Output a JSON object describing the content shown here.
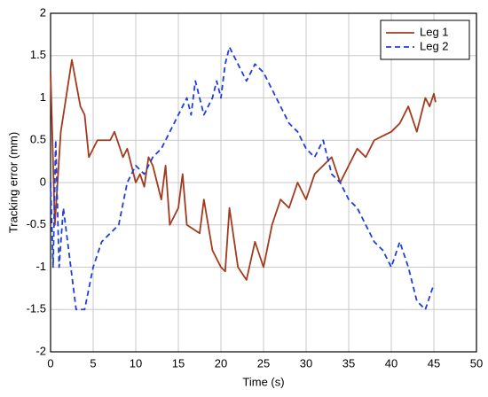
{
  "chart_data": {
    "type": "line",
    "xlabel": "Time (s)",
    "ylabel": "Tracking error (mm)",
    "xlim": [
      0,
      50
    ],
    "xticks": [
      0,
      5,
      10,
      15,
      20,
      25,
      30,
      35,
      40,
      45,
      50
    ],
    "ylim": [
      -2,
      2
    ],
    "yticks": [
      -2,
      -1.5,
      -1,
      -0.5,
      0,
      0.5,
      1,
      1.5,
      2
    ],
    "grid": true,
    "legend": "upper right",
    "series": [
      {
        "name": "Leg 1",
        "color": "#a23b1e",
        "dash": false,
        "x": [
          0,
          0.5,
          1.2,
          2.5,
          3.5,
          4,
          4.5,
          5.5,
          7,
          7.5,
          8.5,
          9,
          10,
          10.5,
          11,
          11.5,
          12,
          13,
          13.5,
          14,
          15,
          15.5,
          16,
          17.5,
          18,
          19,
          20,
          20.5,
          21,
          22,
          23,
          24,
          25,
          26,
          27,
          28,
          29,
          30,
          31,
          32,
          33,
          34,
          35,
          36,
          37,
          38,
          39,
          40,
          41,
          42,
          43,
          44,
          44.5,
          45,
          45.2
        ],
        "values": [
          1.3,
          -0.5,
          0.6,
          1.45,
          0.9,
          0.8,
          0.3,
          0.5,
          0.5,
          0.6,
          0.3,
          0.4,
          0,
          0.1,
          -0.05,
          0.3,
          0.2,
          -0.2,
          0.2,
          -0.5,
          -0.3,
          0.1,
          -0.5,
          -0.6,
          -0.2,
          -0.8,
          -1.0,
          -1.05,
          -0.3,
          -1.0,
          -1.15,
          -0.7,
          -1.0,
          -0.5,
          -0.2,
          -0.3,
          0,
          -0.2,
          0.1,
          0.2,
          0.3,
          0,
          0.2,
          0.4,
          0.3,
          0.5,
          0.55,
          0.6,
          0.7,
          0.9,
          0.6,
          1.0,
          0.9,
          1.05,
          0.95
        ]
      },
      {
        "name": "Leg 2",
        "color": "#1f3fd6",
        "dash": true,
        "x": [
          0,
          0.3,
          0.6,
          1,
          1.5,
          3,
          4,
          5,
          6,
          7,
          8,
          9,
          10,
          11,
          12,
          13,
          14,
          15,
          16,
          16.5,
          17,
          18,
          19,
          19.5,
          20,
          20.5,
          21,
          22,
          23,
          24,
          25,
          26,
          27,
          28,
          29,
          30,
          31,
          32,
          33,
          34,
          35,
          36,
          37,
          38,
          39,
          40,
          41,
          42,
          43,
          44,
          45
        ],
        "values": [
          0,
          -1,
          0.5,
          -1,
          -0.3,
          -1.5,
          -1.5,
          -1.0,
          -0.7,
          -0.6,
          -0.5,
          0,
          0.2,
          0.1,
          0.3,
          0.4,
          0.6,
          0.8,
          1.0,
          0.8,
          1.2,
          0.8,
          1.0,
          1.2,
          1.0,
          1.4,
          1.6,
          1.4,
          1.2,
          1.4,
          1.3,
          1.1,
          0.9,
          0.7,
          0.6,
          0.4,
          0.3,
          0.5,
          0.1,
          0,
          -0.2,
          -0.3,
          -0.5,
          -0.7,
          -0.8,
          -1.0,
          -0.7,
          -1.0,
          -1.4,
          -1.5,
          -1.2
        ]
      }
    ]
  }
}
